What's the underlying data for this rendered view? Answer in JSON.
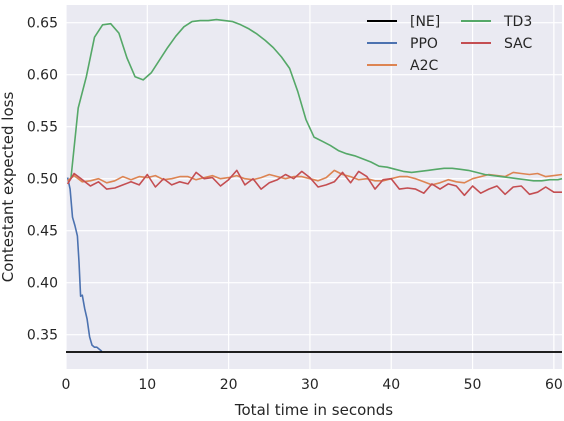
{
  "chart_data": {
    "type": "line",
    "title": "",
    "xlabel": "Total time in seconds",
    "ylabel": "Contestant expected loss",
    "xlim": [
      0,
      61
    ],
    "ylim": [
      0.317,
      0.667
    ],
    "x_ticks": [
      0,
      10,
      20,
      30,
      40,
      50,
      60
    ],
    "y_ticks": [
      0.35,
      0.4,
      0.45,
      0.5,
      0.55,
      0.6,
      0.65
    ],
    "grid": true,
    "legend_position": "top-right",
    "legend_columns": 2,
    "colors": {
      "background": "#eaeaf2",
      "grid": "#ffffff"
    },
    "series": [
      {
        "name": "[NE]",
        "color": "#000000",
        "x": [
          0,
          61
        ],
        "y": [
          0.3333,
          0.3333
        ]
      },
      {
        "name": "PPO",
        "color": "#4c72b0",
        "x": [
          0.2,
          0.5,
          0.8,
          1.1,
          1.4,
          1.6,
          1.8,
          2.0,
          2.3,
          2.6,
          2.9,
          3.2,
          3.5,
          3.8,
          4.1,
          4.4
        ],
        "y": [
          0.501,
          0.49,
          0.463,
          0.455,
          0.445,
          0.42,
          0.387,
          0.388,
          0.375,
          0.365,
          0.348,
          0.34,
          0.338,
          0.338,
          0.336,
          0.334
        ]
      },
      {
        "name": "A2C",
        "color": "#dd8452",
        "x": [
          0.2,
          1,
          2,
          3,
          4,
          5,
          6,
          7,
          8,
          9,
          10,
          11,
          12,
          13,
          14,
          15,
          16,
          17,
          18,
          19,
          20,
          21,
          22,
          23,
          24,
          25,
          26,
          27,
          28,
          29,
          30,
          31,
          32,
          33,
          34,
          35,
          36,
          37,
          38,
          39,
          40,
          41,
          42,
          43,
          44,
          45,
          46,
          47,
          48,
          49,
          50,
          51,
          52,
          53,
          54,
          55,
          56,
          57,
          58,
          59,
          60,
          61
        ],
        "y": [
          0.498,
          0.503,
          0.497,
          0.498,
          0.5,
          0.496,
          0.498,
          0.502,
          0.499,
          0.502,
          0.501,
          0.503,
          0.499,
          0.5,
          0.502,
          0.502,
          0.499,
          0.501,
          0.503,
          0.5,
          0.501,
          0.503,
          0.5,
          0.499,
          0.501,
          0.504,
          0.502,
          0.5,
          0.502,
          0.502,
          0.5,
          0.498,
          0.501,
          0.508,
          0.504,
          0.502,
          0.499,
          0.5,
          0.498,
          0.498,
          0.5,
          0.502,
          0.502,
          0.5,
          0.497,
          0.494,
          0.496,
          0.499,
          0.497,
          0.496,
          0.5,
          0.502,
          0.504,
          0.503,
          0.502,
          0.506,
          0.505,
          0.504,
          0.505,
          0.502,
          0.503,
          0.504
        ]
      },
      {
        "name": "TD3",
        "color": "#55a868",
        "x": [
          0.6,
          1.5,
          2.5,
          3.5,
          4.5,
          5.5,
          6.5,
          7.5,
          8.5,
          9.5,
          10.5,
          11.5,
          12.5,
          13.5,
          14.5,
          15.5,
          16.5,
          17.5,
          18.5,
          19.5,
          20.5,
          21.5,
          22.5,
          23.5,
          24.5,
          25.5,
          26.5,
          27.5,
          28.5,
          29.5,
          30.5,
          31.5,
          32.5,
          33.5,
          34.5,
          35.5,
          36.5,
          37.5,
          38.5,
          39.5,
          40.5,
          41.5,
          42.5,
          43.5,
          44.5,
          45.5,
          46.5,
          47.5,
          48.5,
          49.5,
          50.5,
          51.5,
          52.5,
          53.5,
          54.5,
          55.5,
          56.5,
          57.5,
          58.5,
          59.5,
          60.5,
          61
        ],
        "y": [
          0.5,
          0.568,
          0.598,
          0.636,
          0.648,
          0.649,
          0.64,
          0.616,
          0.598,
          0.595,
          0.602,
          0.614,
          0.626,
          0.637,
          0.646,
          0.651,
          0.652,
          0.652,
          0.653,
          0.652,
          0.651,
          0.648,
          0.644,
          0.639,
          0.633,
          0.626,
          0.617,
          0.606,
          0.584,
          0.557,
          0.54,
          0.536,
          0.532,
          0.527,
          0.524,
          0.522,
          0.519,
          0.516,
          0.512,
          0.511,
          0.509,
          0.507,
          0.506,
          0.507,
          0.508,
          0.509,
          0.51,
          0.51,
          0.509,
          0.508,
          0.506,
          0.504,
          0.503,
          0.502,
          0.501,
          0.5,
          0.499,
          0.498,
          0.498,
          0.499,
          0.499,
          0.5
        ]
      },
      {
        "name": "SAC",
        "color": "#c44e52",
        "x": [
          0.2,
          1,
          2,
          3,
          4,
          5,
          6,
          7,
          8,
          9,
          10,
          11,
          12,
          13,
          14,
          15,
          16,
          17,
          18,
          19,
          20,
          21,
          22,
          23,
          24,
          25,
          26,
          27,
          28,
          29,
          30,
          31,
          32,
          33,
          34,
          35,
          36,
          37,
          38,
          39,
          40,
          41,
          42,
          43,
          44,
          45,
          46,
          47,
          48,
          49,
          50,
          51,
          52,
          53,
          54,
          55,
          56,
          57,
          58,
          59,
          60,
          61
        ],
        "y": [
          0.495,
          0.505,
          0.499,
          0.493,
          0.497,
          0.49,
          0.491,
          0.494,
          0.497,
          0.494,
          0.504,
          0.492,
          0.5,
          0.494,
          0.497,
          0.495,
          0.506,
          0.5,
          0.501,
          0.493,
          0.499,
          0.508,
          0.494,
          0.5,
          0.49,
          0.496,
          0.499,
          0.504,
          0.5,
          0.507,
          0.501,
          0.492,
          0.494,
          0.497,
          0.506,
          0.496,
          0.507,
          0.502,
          0.49,
          0.499,
          0.5,
          0.49,
          0.491,
          0.49,
          0.486,
          0.495,
          0.49,
          0.495,
          0.493,
          0.484,
          0.493,
          0.486,
          0.49,
          0.493,
          0.485,
          0.492,
          0.493,
          0.485,
          0.487,
          0.492,
          0.487,
          0.487
        ]
      }
    ]
  }
}
